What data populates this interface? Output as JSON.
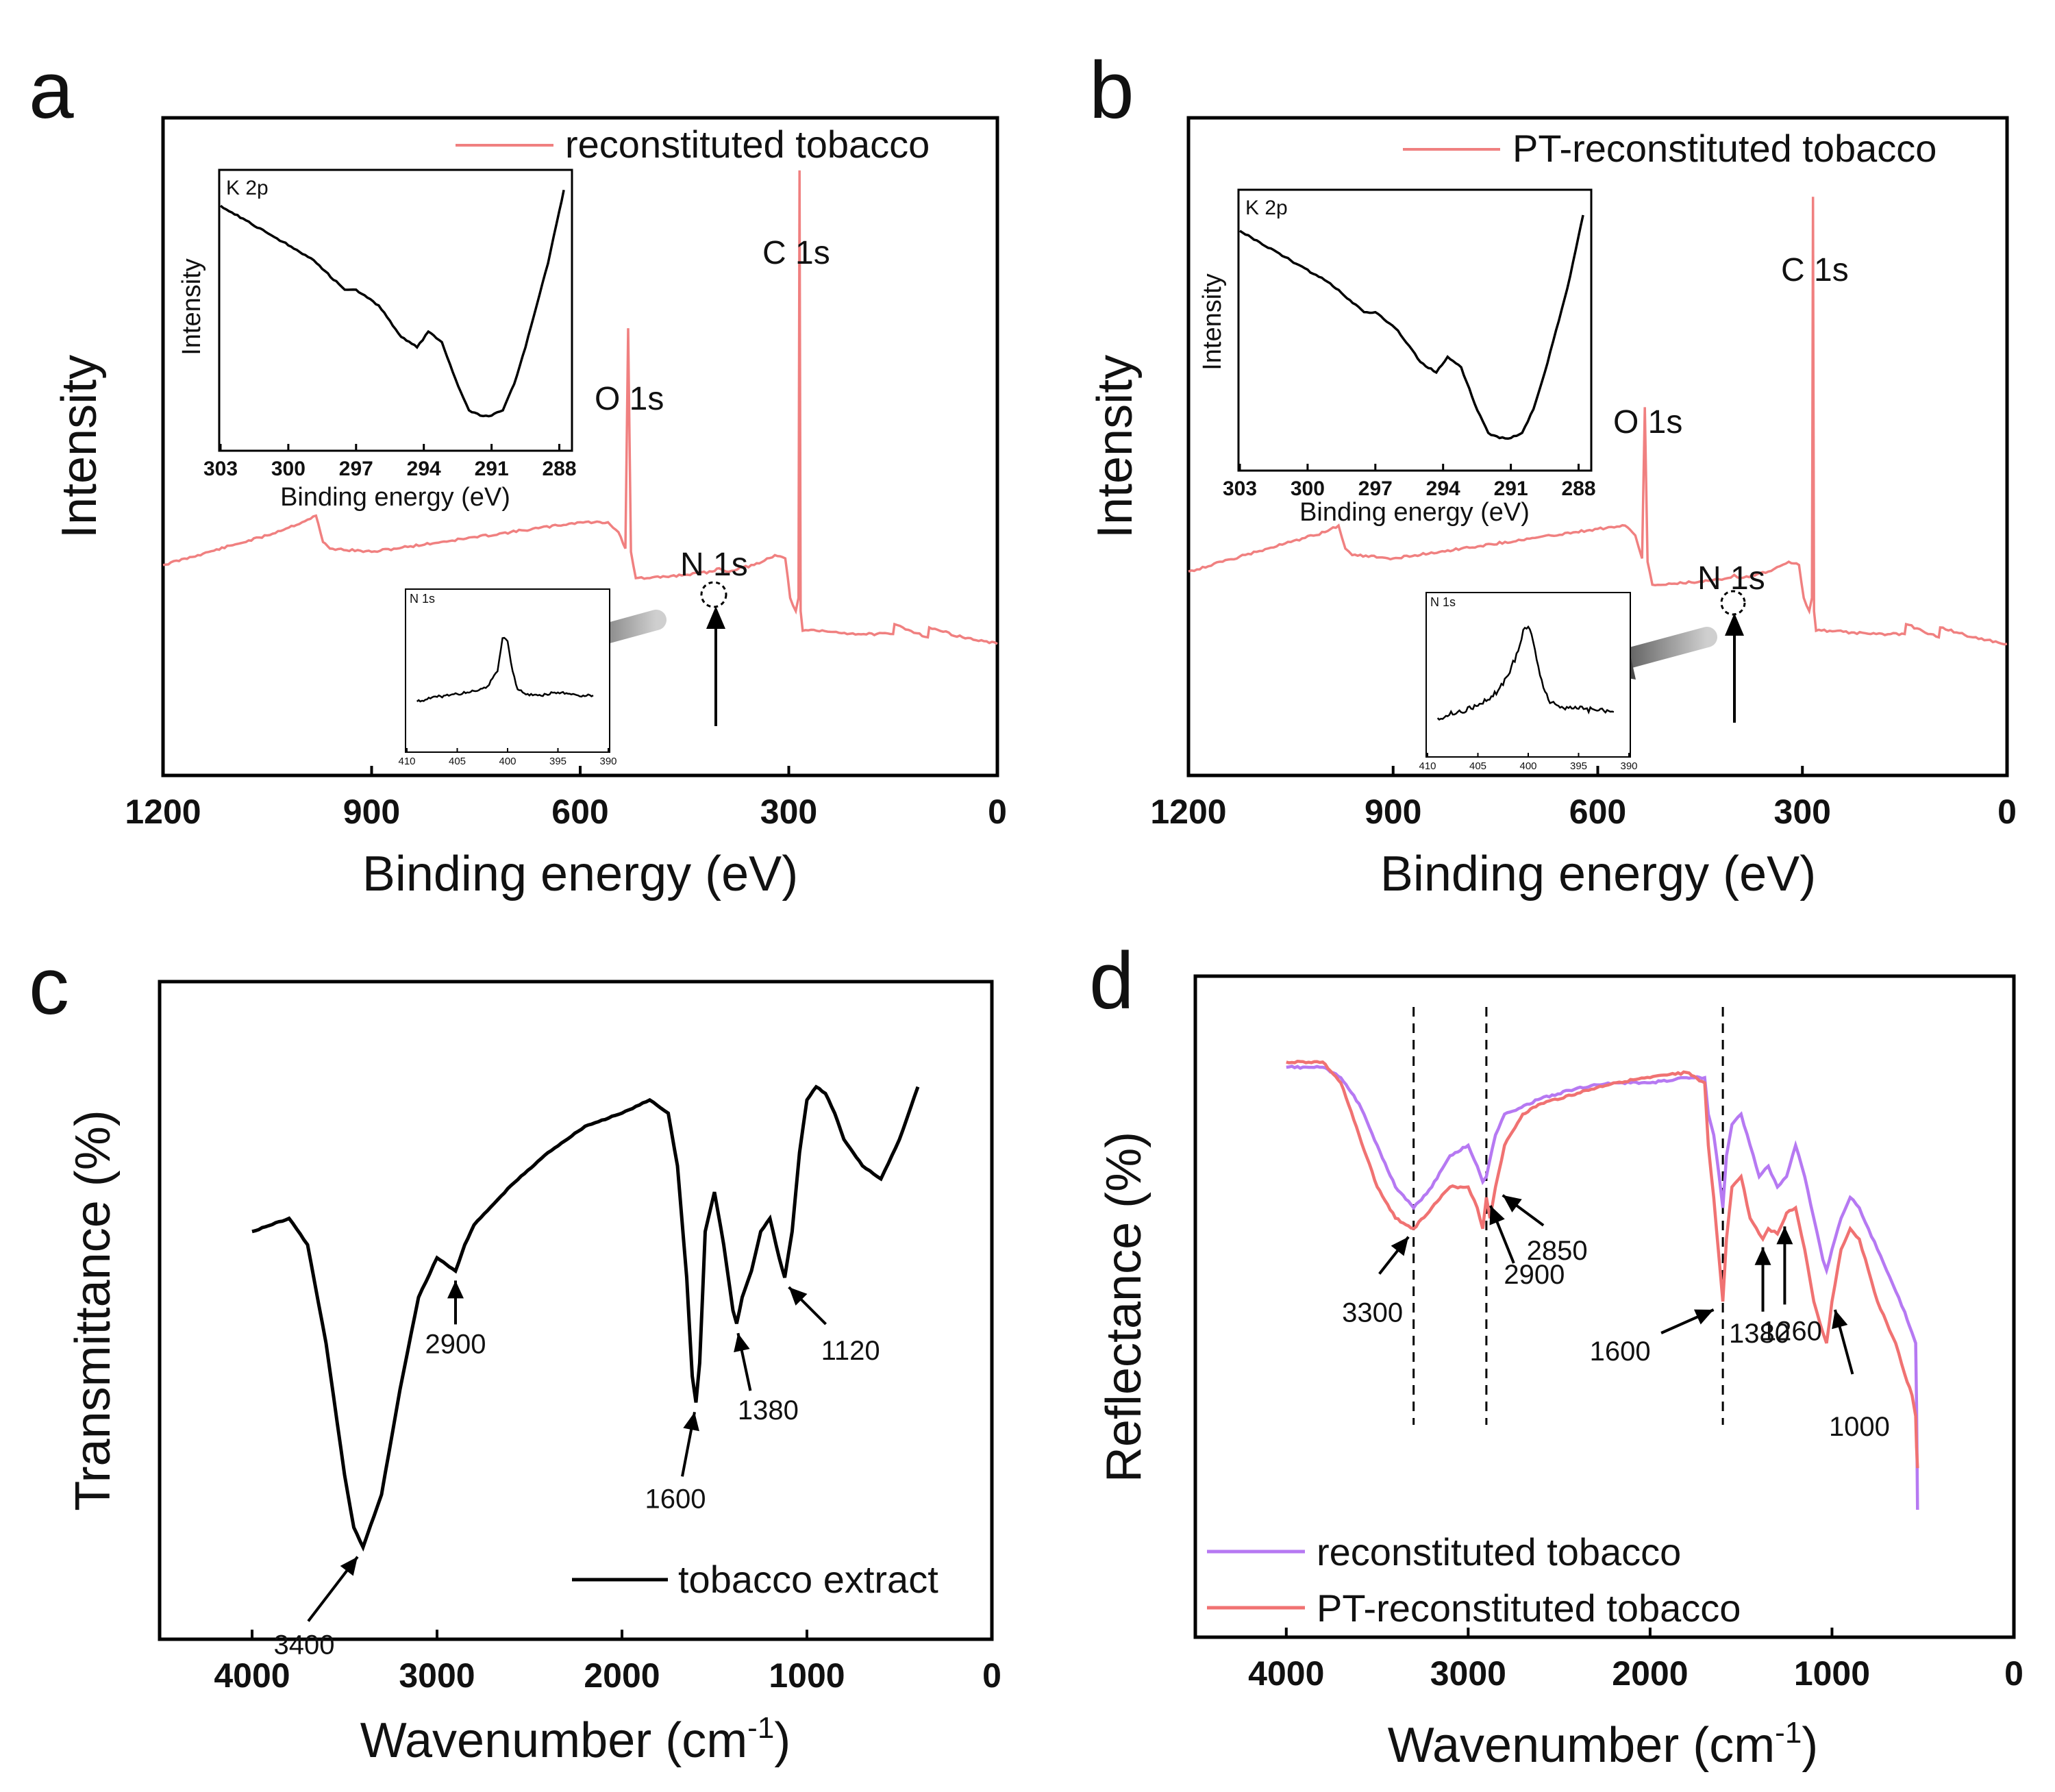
{
  "colors": {
    "axis": "#000000",
    "xps": "#f08080",
    "ftir_a": "#b679f2",
    "ftir_b": "#f07272",
    "black": "#000000"
  },
  "panel_labels": [
    "a",
    "b",
    "c",
    "d"
  ],
  "chart_data": [
    {
      "panel": "a",
      "type": "line",
      "xlabel": "Binding energy (eV)",
      "ylabel": "Intensity",
      "xlim": [
        1200,
        0
      ],
      "xticks": [
        "1200",
        "900",
        "600",
        "300",
        "0"
      ],
      "legend": "reconstituted tobacco",
      "series": [
        {
          "name": "reconstituted tobacco",
          "x": [
            1200,
            1150,
            1100,
            1050,
            1000,
            980,
            970,
            960,
            900,
            800,
            700,
            600,
            560,
            545,
            535,
            531,
            527,
            520,
            500,
            450,
            410,
            400,
            390,
            350,
            320,
            305,
            298,
            290,
            286,
            284.5,
            283,
            280,
            260,
            200,
            150,
            148,
            100,
            98,
            50,
            0
          ],
          "y": [
            0.32,
            0.335,
            0.35,
            0.365,
            0.385,
            0.395,
            0.355,
            0.345,
            0.34,
            0.355,
            0.37,
            0.385,
            0.385,
            0.37,
            0.345,
            0.68,
            0.34,
            0.3,
            0.3,
            0.305,
            0.31,
            0.315,
            0.31,
            0.32,
            0.335,
            0.33,
            0.27,
            0.25,
            0.27,
            0.92,
            0.25,
            0.22,
            0.22,
            0.215,
            0.215,
            0.23,
            0.21,
            0.225,
            0.21,
            0.2
          ]
        }
      ],
      "peak_labels": [
        {
          "text": "C 1s",
          "x": 284.5
        },
        {
          "text": "O 1s",
          "x": 531
        },
        {
          "text": "N 1s",
          "x": 400
        }
      ],
      "inset_k2p": {
        "title": "K 2p",
        "xlabel": "Binding energy (eV)",
        "ylabel": "Intensity",
        "xlim": [
          303,
          287.5
        ],
        "xticks": [
          "303",
          "300",
          "297",
          "294",
          "291",
          "288"
        ],
        "x": [
          303,
          301,
          299,
          297.5,
          297,
          296,
          295,
          294.3,
          293.8,
          293.2,
          292.6,
          292,
          291.5,
          291,
          290.5,
          290,
          289.5,
          289,
          288.5,
          288,
          287.8
        ],
        "y": [
          0.9,
          0.8,
          0.7,
          0.58,
          0.58,
          0.52,
          0.4,
          0.36,
          0.42,
          0.38,
          0.24,
          0.12,
          0.1,
          0.1,
          0.12,
          0.22,
          0.36,
          0.52,
          0.68,
          0.88,
          0.96
        ]
      },
      "inset_n1s": {
        "title": "N 1s",
        "xlim": [
          410,
          390
        ],
        "xticks": [
          "410",
          "405",
          "400",
          "395",
          "390"
        ],
        "x": [
          409,
          407,
          405,
          404,
          403,
          402,
          401,
          400.5,
          400,
          399.5,
          399,
          398.5,
          398,
          397,
          395,
          393,
          391.5
        ],
        "y": [
          0.3,
          0.33,
          0.35,
          0.36,
          0.37,
          0.4,
          0.5,
          0.72,
          0.7,
          0.5,
          0.38,
          0.36,
          0.35,
          0.34,
          0.36,
          0.34,
          0.34
        ]
      }
    },
    {
      "panel": "b",
      "type": "line",
      "xlabel": "Binding energy (eV)",
      "ylabel": "Intensity",
      "xlim": [
        1200,
        0
      ],
      "xticks": [
        "1200",
        "900",
        "600",
        "300",
        "0"
      ],
      "legend": "PT-reconstituted tobacco",
      "series": [
        {
          "name": "PT-reconstituted tobacco",
          "x": [
            1200,
            1150,
            1100,
            1050,
            1000,
            980,
            970,
            960,
            900,
            800,
            700,
            600,
            560,
            545,
            535,
            531,
            527,
            520,
            500,
            450,
            410,
            400,
            390,
            350,
            320,
            305,
            298,
            290,
            286,
            284.5,
            283,
            280,
            260,
            200,
            150,
            148,
            100,
            98,
            50,
            0
          ],
          "y": [
            0.31,
            0.325,
            0.34,
            0.355,
            0.37,
            0.38,
            0.345,
            0.335,
            0.33,
            0.345,
            0.36,
            0.375,
            0.38,
            0.365,
            0.33,
            0.56,
            0.325,
            0.29,
            0.29,
            0.295,
            0.3,
            0.305,
            0.3,
            0.31,
            0.325,
            0.32,
            0.27,
            0.25,
            0.27,
            0.88,
            0.25,
            0.22,
            0.22,
            0.215,
            0.215,
            0.23,
            0.21,
            0.225,
            0.21,
            0.2
          ]
        }
      ],
      "peak_labels": [
        {
          "text": "C 1s",
          "x": 284.5
        },
        {
          "text": "O 1s",
          "x": 531
        },
        {
          "text": "N 1s",
          "x": 400
        }
      ],
      "inset_k2p": {
        "title": "K 2p",
        "xlabel": "Binding energy (eV)",
        "ylabel": "Intensity",
        "xlim": [
          303,
          287.5
        ],
        "xticks": [
          "303",
          "300",
          "297",
          "294",
          "291",
          "288"
        ],
        "x": [
          303,
          301,
          299,
          297.5,
          297,
          296,
          295,
          294.3,
          293.8,
          293.2,
          292.6,
          292,
          291.5,
          291,
          290.5,
          290,
          289.5,
          289,
          288.5,
          288,
          287.8
        ],
        "y": [
          0.88,
          0.78,
          0.68,
          0.57,
          0.57,
          0.5,
          0.38,
          0.34,
          0.4,
          0.36,
          0.22,
          0.11,
          0.09,
          0.09,
          0.11,
          0.2,
          0.34,
          0.5,
          0.66,
          0.86,
          0.94
        ]
      },
      "inset_n1s": {
        "title": "N 1s",
        "xlim": [
          410,
          390
        ],
        "xticks": [
          "410",
          "405",
          "400",
          "395",
          "390"
        ],
        "x": [
          409,
          407,
          405,
          404,
          403,
          402,
          401,
          400.5,
          400,
          399.5,
          399,
          398.5,
          398,
          397,
          395,
          393,
          391.5
        ],
        "y": [
          0.22,
          0.26,
          0.3,
          0.34,
          0.4,
          0.5,
          0.66,
          0.8,
          0.82,
          0.72,
          0.56,
          0.42,
          0.34,
          0.3,
          0.28,
          0.27,
          0.26
        ]
      }
    },
    {
      "panel": "c",
      "type": "line",
      "xlabel": "Wavenumber (cm-1)",
      "ylabel": "Transmittance (%)",
      "xlim": [
        4500,
        0
      ],
      "xticks": [
        "4000",
        "3000",
        "2000",
        "1000",
        "0"
      ],
      "legend": "tobacco extract",
      "series": [
        {
          "name": "tobacco extract",
          "x": [
            4000,
            3800,
            3700,
            3600,
            3500,
            3450,
            3400,
            3300,
            3200,
            3100,
            3000,
            2950,
            2900,
            2850,
            2800,
            2600,
            2400,
            2200,
            2000,
            1850,
            1750,
            1700,
            1650,
            1620,
            1600,
            1580,
            1550,
            1500,
            1450,
            1400,
            1380,
            1350,
            1300,
            1250,
            1200,
            1150,
            1120,
            1080,
            1040,
            1000,
            950,
            900,
            850,
            800,
            750,
            700,
            600,
            500,
            400
          ],
          "y": [
            0.62,
            0.64,
            0.6,
            0.45,
            0.25,
            0.17,
            0.14,
            0.22,
            0.38,
            0.52,
            0.58,
            0.57,
            0.56,
            0.6,
            0.63,
            0.69,
            0.74,
            0.78,
            0.8,
            0.82,
            0.8,
            0.72,
            0.55,
            0.4,
            0.36,
            0.42,
            0.62,
            0.68,
            0.6,
            0.5,
            0.48,
            0.52,
            0.56,
            0.62,
            0.64,
            0.58,
            0.55,
            0.62,
            0.74,
            0.82,
            0.84,
            0.83,
            0.8,
            0.76,
            0.74,
            0.72,
            0.7,
            0.76,
            0.84
          ]
        }
      ],
      "annotations": [
        {
          "text": "3400",
          "x": 3400
        },
        {
          "text": "2900",
          "x": 2900
        },
        {
          "text": "1600",
          "x": 1600
        },
        {
          "text": "1380",
          "x": 1380
        },
        {
          "text": "1120",
          "x": 1120
        }
      ]
    },
    {
      "panel": "d",
      "type": "line",
      "xlabel": "Wavenumber (cm-1)",
      "ylabel": "Reflectance (%)",
      "xlim": [
        4500,
        0
      ],
      "xticks": [
        "4000",
        "3000",
        "2000",
        "1000",
        "0"
      ],
      "series": [
        {
          "name": "reconstituted tobacco",
          "x": [
            4000,
            3800,
            3700,
            3600,
            3500,
            3400,
            3300,
            3200,
            3100,
            3000,
            2950,
            2920,
            2900,
            2850,
            2800,
            2600,
            2400,
            2200,
            2000,
            1800,
            1700,
            1680,
            1650,
            1620,
            1600,
            1580,
            1550,
            1500,
            1450,
            1400,
            1350,
            1300,
            1250,
            1200,
            1150,
            1100,
            1050,
            1030,
            1000,
            950,
            900,
            850,
            800,
            750,
            700,
            650,
            600,
            560,
            540,
            535,
            530
          ],
          "y": [
            0.95,
            0.95,
            0.93,
            0.88,
            0.8,
            0.72,
            0.68,
            0.72,
            0.78,
            0.8,
            0.76,
            0.73,
            0.74,
            0.82,
            0.86,
            0.89,
            0.91,
            0.92,
            0.92,
            0.93,
            0.93,
            0.86,
            0.82,
            0.74,
            0.68,
            0.78,
            0.84,
            0.86,
            0.8,
            0.74,
            0.76,
            0.72,
            0.74,
            0.8,
            0.74,
            0.66,
            0.58,
            0.56,
            0.6,
            0.66,
            0.7,
            0.68,
            0.64,
            0.6,
            0.56,
            0.52,
            0.48,
            0.44,
            0.42,
            0.3,
            0.1
          ]
        },
        {
          "name": "PT-reconstituted tobacco",
          "x": [
            4000,
            3800,
            3700,
            3600,
            3500,
            3400,
            3300,
            3200,
            3100,
            3000,
            2950,
            2920,
            2900,
            2880,
            2850,
            2800,
            2700,
            2600,
            2400,
            2200,
            2000,
            1800,
            1700,
            1680,
            1650,
            1620,
            1600,
            1580,
            1550,
            1500,
            1450,
            1400,
            1380,
            1350,
            1300,
            1260,
            1250,
            1200,
            1150,
            1100,
            1050,
            1030,
            1000,
            950,
            900,
            850,
            800,
            750,
            700,
            650,
            600,
            560,
            540,
            535,
            530
          ],
          "y": [
            0.96,
            0.96,
            0.92,
            0.82,
            0.72,
            0.66,
            0.64,
            0.68,
            0.72,
            0.72,
            0.68,
            0.64,
            0.7,
            0.66,
            0.72,
            0.8,
            0.86,
            0.88,
            0.9,
            0.92,
            0.93,
            0.94,
            0.92,
            0.8,
            0.7,
            0.58,
            0.5,
            0.62,
            0.72,
            0.74,
            0.66,
            0.63,
            0.62,
            0.64,
            0.63,
            0.66,
            0.67,
            0.68,
            0.6,
            0.5,
            0.44,
            0.42,
            0.5,
            0.6,
            0.64,
            0.62,
            0.56,
            0.5,
            0.46,
            0.42,
            0.36,
            0.32,
            0.28,
            0.22,
            0.18
          ]
        }
      ],
      "legend": [
        "reconstituted tobacco",
        "PT-reconstituted tobacco"
      ],
      "dashed_lines_x": [
        3300,
        2900,
        1600
      ],
      "annotations": [
        {
          "text": "3300",
          "x": 3300
        },
        {
          "text": "2900",
          "x": 2900
        },
        {
          "text": "2850",
          "x": 2850
        },
        {
          "text": "1600",
          "x": 1600
        },
        {
          "text": "1380",
          "x": 1380
        },
        {
          "text": "1260",
          "x": 1260
        },
        {
          "text": "1000",
          "x": 1000
        }
      ]
    }
  ]
}
